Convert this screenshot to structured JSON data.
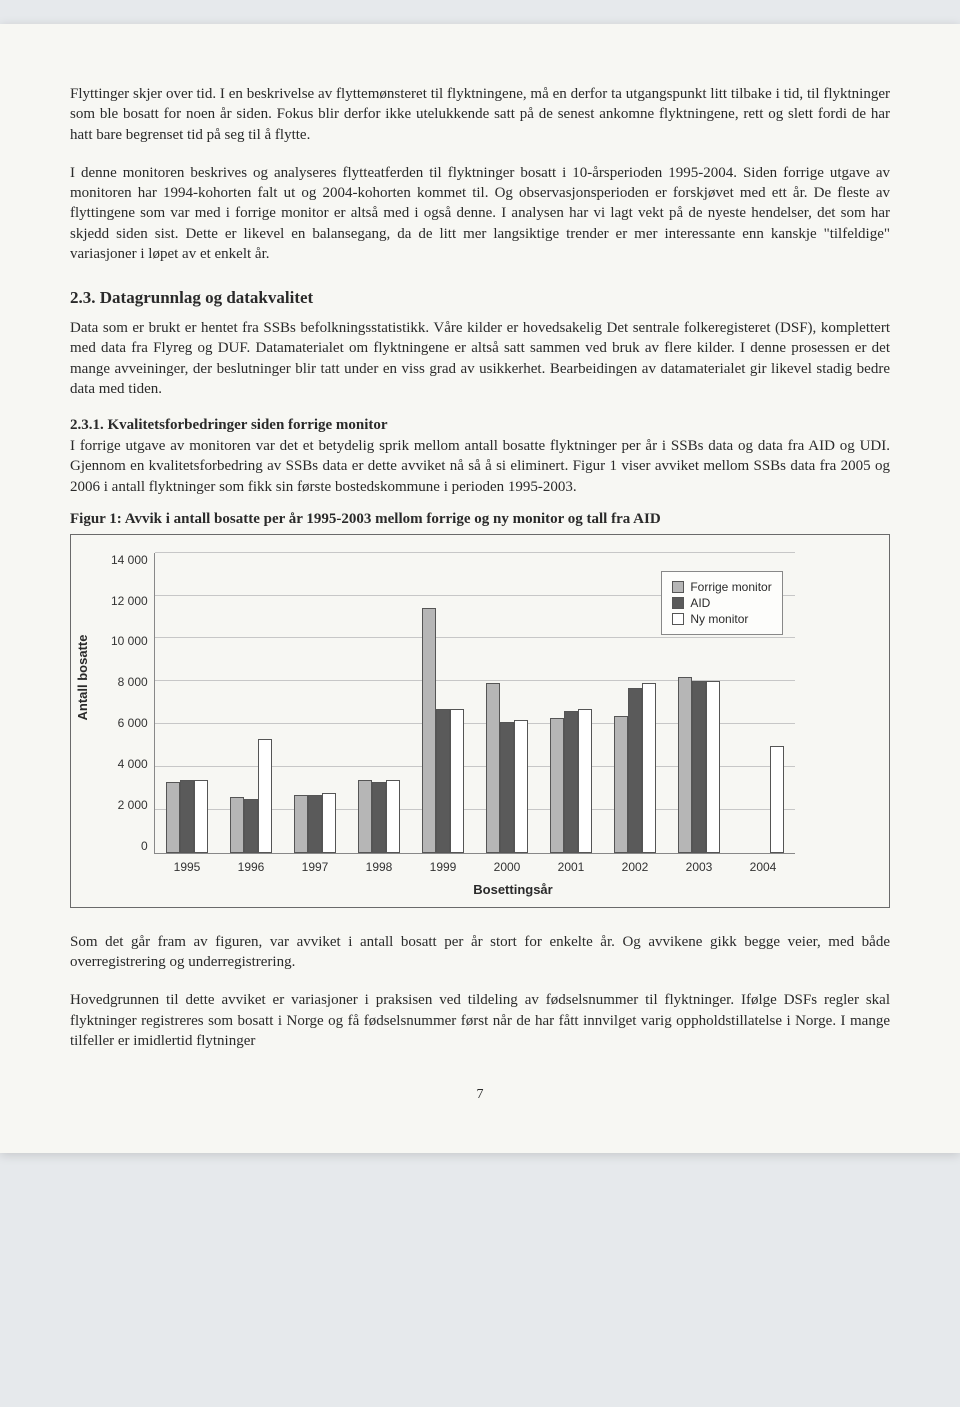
{
  "para1": "Flyttinger skjer over tid. I en beskrivelse av flyttemønsteret til flyktningene, må en derfor ta utgangspunkt litt tilbake i tid, til flyktninger som ble bosatt for noen år siden. Fokus blir derfor ikke utelukkende satt på de senest ankomne flyktningene, rett og slett fordi de har hatt bare begrenset tid på seg til å flytte.",
  "para2": "I denne monitoren beskrives og analyseres flytteatferden til flyktninger bosatt i 10-årsperioden 1995-2004. Siden forrige utgave av monitoren har 1994-kohorten falt ut og 2004-kohorten kommet til. Og observasjonsperioden er forskjøvet med ett år. De fleste av flyttingene som var med i forrige monitor er altså med i også denne. I analysen har vi lagt vekt på de nyeste hendelser, det som har skjedd siden sist. Dette er likevel en balansegang, da de litt mer langsiktige trender er mer interessante enn kanskje \"tilfeldige\" variasjoner i løpet av et enkelt år.",
  "sec23_heading": "2.3. Datagrunnlag og datakvalitet",
  "sec23_body": "Data som er brukt er hentet fra SSBs befolkningsstatistikk. Våre kilder er hovedsakelig Det sentrale folkeregisteret (DSF), komplettert med data fra Flyreg og DUF. Datamaterialet om flyktningene er altså satt sammen ved bruk av flere kilder. I denne prosessen er det mange avveininger, der beslutninger blir tatt under en viss grad av usikkerhet. Bearbeidingen av datamaterialet gir likevel stadig bedre data med tiden.",
  "sec231_heading": "2.3.1. Kvalitetsforbedringer siden forrige monitor",
  "sec231_body": "I forrige utgave av monitoren var det et betydelig sprik mellom antall bosatte flyktninger per år i SSBs data og data fra AID og UDI. Gjennom en kvalitetsforbedring av SSBs data er dette avviket nå så å si eliminert. Figur 1 viser avviket mellom SSBs data fra 2005 og 2006 i antall flyktninger som fikk sin første bostedskommune i perioden 1995-2003.",
  "figure1_caption": "Figur 1: Avvik i antall bosatte per år 1995-2003 mellom forrige og ny monitor og tall fra AID",
  "chart": {
    "type": "bar",
    "ylabel": "Antall bosatte",
    "xlabel": "Bosettingsår",
    "ylim": [
      0,
      14000
    ],
    "ytick_step": 2000,
    "yticks_labels": [
      "14 000",
      "12 000",
      "10 000",
      "8 000",
      "6 000",
      "4 000",
      "2 000",
      "0"
    ],
    "categories": [
      "1995",
      "1996",
      "1997",
      "1998",
      "1999",
      "2000",
      "2001",
      "2002",
      "2003",
      "2004"
    ],
    "series": [
      {
        "name": "Forrige monitor",
        "color": "#b6b6b6",
        "values": [
          3300,
          2600,
          2700,
          3400,
          11400,
          7900,
          6300,
          6400,
          8200,
          0
        ]
      },
      {
        "name": "AID",
        "color": "#5a5a5a",
        "values": [
          3400,
          2500,
          2700,
          3300,
          6700,
          6100,
          6600,
          7700,
          8000,
          0
        ]
      },
      {
        "name": "Ny monitor",
        "color": "#ffffff",
        "values": [
          3400,
          5300,
          2800,
          3400,
          6700,
          6200,
          6700,
          7900,
          8000,
          5000
        ]
      }
    ],
    "background_color": "#f7f7f3",
    "grid_color": "#c7c7c7",
    "border_color": "#888888",
    "legend_border": "#888888",
    "axis_font_family": "Arial",
    "axis_font_size": 12,
    "label_font_size": 13,
    "label_font_weight": "bold"
  },
  "para3": "Som det går fram av figuren, var avviket i antall bosatt per år stort for enkelte år. Og avvikene gikk begge veier, med både overregistrering og underregistrering.",
  "para4": "Hovedgrunnen til dette avviket er variasjoner i praksisen ved tildeling av fødselsnummer til flyktninger. Ifølge DSFs regler skal flyktninger registreres som bosatt i Norge og få fødselsnummer først når de har fått innvilget varig oppholdstillatelse i Norge. I mange tilfeller er imidlertid flytninger",
  "page_number": "7"
}
